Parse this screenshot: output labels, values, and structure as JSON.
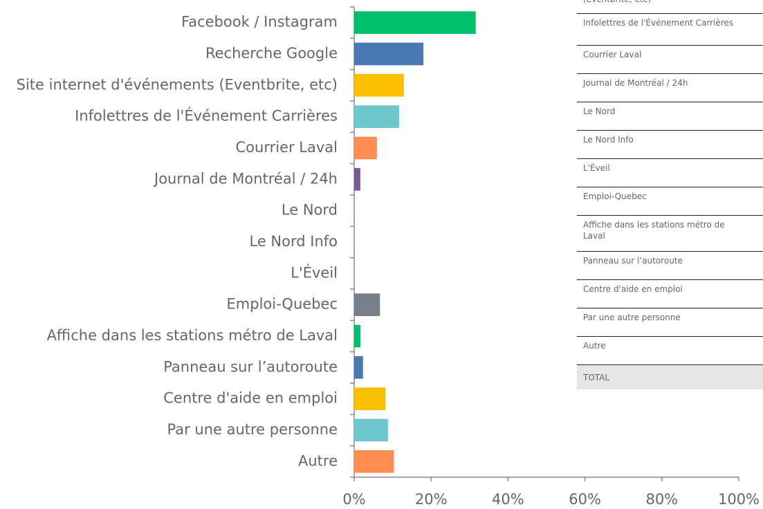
{
  "chart_data": {
    "type": "bar",
    "orientation": "horizontal",
    "categories": [
      "Facebook / Instagram",
      "Recherche Google",
      "Site internet d'événements (Eventbrite, etc)",
      "Infolettres de l'Événement Carrières",
      "Courrier Laval",
      "Journal de Montréal / 24h",
      "Le Nord",
      "Le Nord Info",
      "L'Éveil",
      "Emploi-Quebec",
      "Affiche dans les stations métro de Laval",
      "Panneau sur l’autoroute",
      "Centre d'aide en emploi",
      "Par une autre personne",
      "Autre"
    ],
    "values": [
      31.6,
      18.0,
      12.9,
      11.7,
      5.9,
      1.6,
      0,
      0,
      0,
      6.7,
      1.6,
      2.3,
      8.1,
      8.8,
      10.3
    ],
    "colors": [
      "#00c06e",
      "#4a78b4",
      "#f9bf00",
      "#6cc8cc",
      "#ff8c50",
      "#7a5a96",
      "#00c06e",
      "#4a78b4",
      "#f9bf00",
      "#777f88",
      "#00c06e",
      "#4a78b4",
      "#f9bf00",
      "#6cc8cc",
      "#ff8c50"
    ],
    "xlim": [
      0,
      100
    ],
    "xticks": [
      {
        "value": 0,
        "label": "0%"
      },
      {
        "value": 20,
        "label": "20%"
      },
      {
        "value": 40,
        "label": "40%"
      },
      {
        "value": 60,
        "label": "60%"
      },
      {
        "value": 80,
        "label": "80%"
      },
      {
        "value": 100,
        "label": "100%"
      }
    ]
  },
  "table": {
    "rows": [
      "(Eventbrite, etc)",
      "Infolettres de l'Événement Carrières",
      "Courrier Laval",
      "Journal de Montréal / 24h",
      "Le Nord",
      "Le Nord Info",
      "L'Éveil",
      "Emploi-Quebec",
      "Affiche dans les stations métro de Laval",
      "Panneau sur l’autoroute",
      "Centre d'aide en emploi",
      "Par une autre personne",
      "Autre"
    ],
    "total": "TOTAL"
  }
}
